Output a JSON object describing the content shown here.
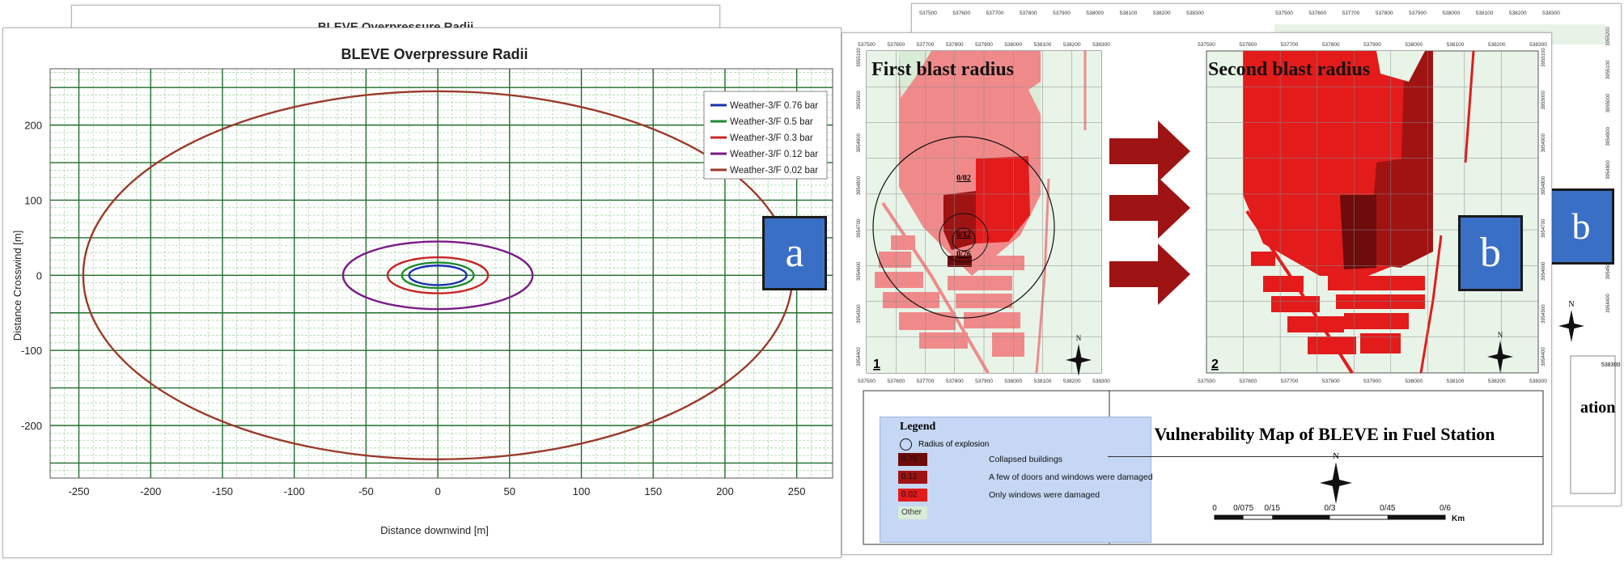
{
  "chart_data": {
    "type": "line",
    "title": "BLEVE Overpressure Radii",
    "xlabel": "Distance downwind [m]",
    "ylabel": "Distance Crosswind [m]",
    "xlim": [
      -270,
      275
    ],
    "ylim": [
      -270,
      275
    ],
    "x_ticks": [
      -250,
      -200,
      -150,
      -100,
      -50,
      0,
      50,
      100,
      150,
      200,
      250
    ],
    "y_ticks": [
      -200,
      -100,
      0,
      100,
      200
    ],
    "x_tick_labels": [
      "-250",
      "-200",
      "-150",
      "-100",
      "-50",
      "0",
      "50",
      "100",
      "150",
      "200",
      "250"
    ],
    "y_tick_labels": [
      "-200",
      "-100",
      "0",
      "100",
      "200"
    ],
    "grid": true,
    "legend_position": "top-right",
    "series": [
      {
        "name": "Weather-3/F 0.76 bar",
        "color": "#1c2fb0",
        "cx": 0,
        "cy": 0,
        "rx": 20,
        "ry": 13
      },
      {
        "name": "Weather-3/F 0.5 bar",
        "color": "#1f8a2e",
        "cx": 0,
        "cy": 0,
        "rx": 25,
        "ry": 17
      },
      {
        "name": "Weather-3/F 0.3 bar",
        "color": "#c72525",
        "cx": 0,
        "cy": 0,
        "rx": 35,
        "ry": 24
      },
      {
        "name": "Weather-3/F 0.12 bar",
        "color": "#7a1b86",
        "cx": 0,
        "cy": 0,
        "rx": 66,
        "ry": 45
      },
      {
        "name": "Weather-3/F 0.02 bar",
        "color": "#9b3a2b",
        "cx": 0,
        "cy": 0,
        "rx": 247,
        "ry": 245
      }
    ]
  },
  "panel_a": {
    "label": "a",
    "back_title": "BLEVE Overpressure Radii"
  },
  "panel_b": {
    "label": "b",
    "back_label": "b",
    "map1_title": "First blast radius",
    "map2_title": "Second blast radius",
    "map1_number": "1",
    "map2_number": "2",
    "radius_labels": [
      "0/02",
      "0/12",
      "0/76"
    ],
    "top_ticks": [
      "537500",
      "537600",
      "537700",
      "537800",
      "537900",
      "538000",
      "538100",
      "538200",
      "538300"
    ],
    "left_ticks": [
      "3954400",
      "3954500",
      "3954600",
      "3954700",
      "3954800",
      "3954900",
      "3955000",
      "3955100"
    ],
    "back_top_ticks": [
      "537500",
      "537600",
      "537700",
      "537800",
      "537900",
      "538000",
      "538100",
      "538200",
      "538300"
    ],
    "back_side_ticks": [
      "3954400",
      "3954500",
      "3954600",
      "3954700",
      "3954800",
      "3954900",
      "3955000",
      "3955100",
      "3955200"
    ],
    "back_extra_tick": "538300",
    "back_partial_text": "ation",
    "north_label": "N",
    "legend": {
      "title": "Legend",
      "radius_label": "Radius of explosion",
      "items": [
        {
          "value": "0.76",
          "desc": "Collapsed buildings",
          "color": "#6e0b0b"
        },
        {
          "value": "0.12",
          "desc": "A few of doors and windows were damaged",
          "color": "#a01313"
        },
        {
          "value": "0.02",
          "desc": "Only windows were damaged",
          "color": "#e31b1b"
        },
        {
          "value": "Other",
          "desc": "",
          "color": "#d8ecd8"
        }
      ]
    },
    "map_title": "Vulnerability Map of BLEVE  in Fuel Station",
    "scale_ticks": [
      "0",
      "0/075",
      "0/15",
      "0/3",
      "0/45",
      "0/6"
    ],
    "scale_unit": "Km",
    "colors": {
      "light_red": "#f08a8a",
      "mid_red": "#e31b1b",
      "dark_red": "#a01313",
      "darkest_red": "#6e0b0b",
      "green": "#d8ecd8",
      "arrow": "#9e1414",
      "tag_blue": "#3a6fc6"
    }
  }
}
